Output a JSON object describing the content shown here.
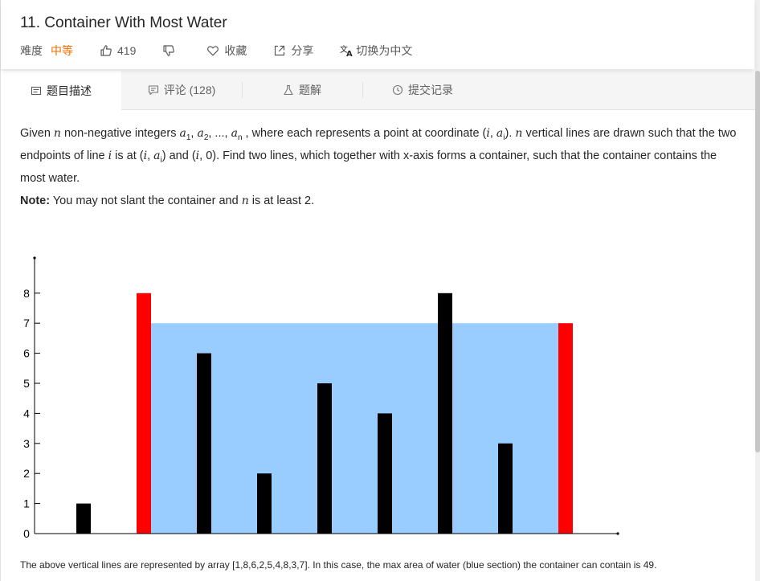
{
  "problem": {
    "title": "11. Container With Most Water",
    "difficulty_label": "难度",
    "difficulty": "中等",
    "likes": "419",
    "favorite_label": "收藏",
    "share_label": "分享",
    "translate_label": "切换为中文"
  },
  "tabs": [
    {
      "label": "题目描述"
    },
    {
      "label": "评论 (128)"
    },
    {
      "label": "题解"
    },
    {
      "label": "提交记录"
    }
  ],
  "description": {
    "p1_a": "Given ",
    "n": "n",
    "p1_b": " non-negative integers ",
    "a": "a",
    "sub1": "1",
    "sub2": "2",
    "subn": "n",
    "subi": "i",
    "ellipsis": ", ..., ",
    "comma": ", ",
    "p1_c": " , where each represents a point at coordinate (",
    "i": "i",
    "p1_d": "). ",
    "p1_e": " vertical lines are drawn such that the two endpoints of line ",
    "p1_f": " is at (",
    "p1_g": ") and (",
    "p1_h": ", 0). Find two lines, which together with x-axis forms a container, such that the container contains the most water.",
    "note_label": "Note:",
    "note_a": " You may not slant the container and ",
    "note_b": " is at least 2."
  },
  "chart_data": {
    "type": "bar",
    "categories": [
      "1",
      "2",
      "3",
      "4",
      "5",
      "6",
      "7",
      "8",
      "9"
    ],
    "values": [
      1,
      8,
      6,
      2,
      5,
      4,
      8,
      3,
      7
    ],
    "highlight": [
      1,
      8
    ],
    "water_level": 7,
    "ylim": [
      0,
      8
    ],
    "yticks": [
      "0",
      "1",
      "2",
      "3",
      "4",
      "5",
      "6",
      "7",
      "8"
    ],
    "bar_color": "#000000",
    "highlight_color": "#ff0000",
    "water_color": "#99ccff"
  },
  "caption": "The above vertical lines are represented by array [1,8,6,2,5,4,8,3,7]. In this case, the max area of water (blue section) the container can contain is 49."
}
